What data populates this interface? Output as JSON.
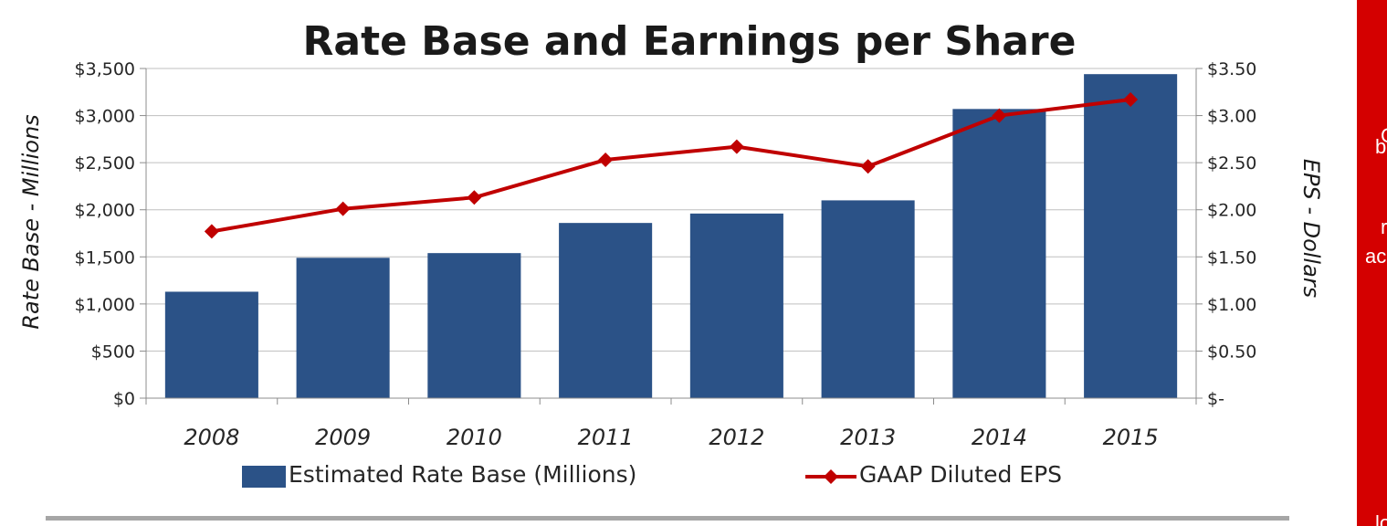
{
  "chart_data": {
    "type": "bar",
    "title": "Rate Base and Earnings per Share",
    "ylabel": "Rate Base - Millions",
    "y2label": "EPS - Dollars",
    "categories": [
      "2008",
      "2009",
      "2010",
      "2011",
      "2012",
      "2013",
      "2014",
      "2015"
    ],
    "ylim": [
      0,
      3500
    ],
    "y2lim": [
      0,
      3.5
    ],
    "y_ticks": [
      "$0",
      "$500",
      "$1,000",
      "$1,500",
      "$2,000",
      "$2,500",
      "$3,000",
      "$3,500"
    ],
    "y2_ticks": [
      "$-",
      "$0.50",
      "$1.00",
      "$1.50",
      "$2.00",
      "$2.50",
      "$3.00",
      "$3.50"
    ],
    "grid": true,
    "legend_position": "bottom",
    "series": [
      {
        "name": "Estimated Rate Base (Millions)",
        "type": "bar",
        "axis": "left",
        "color": "#2b5287",
        "values": [
          1130,
          1490,
          1540,
          1860,
          1960,
          2100,
          3070,
          3440
        ]
      },
      {
        "name": "GAAP Diluted EPS",
        "type": "line",
        "axis": "right",
        "color": "#c00000",
        "marker": "diamond",
        "values": [
          1.77,
          2.01,
          2.13,
          2.53,
          2.67,
          2.46,
          3.0,
          3.17
        ]
      }
    ]
  },
  "sidebar": {
    "background": "#d40000",
    "fragments": [
      "C",
      "b",
      "r",
      "ac",
      "lo"
    ]
  }
}
